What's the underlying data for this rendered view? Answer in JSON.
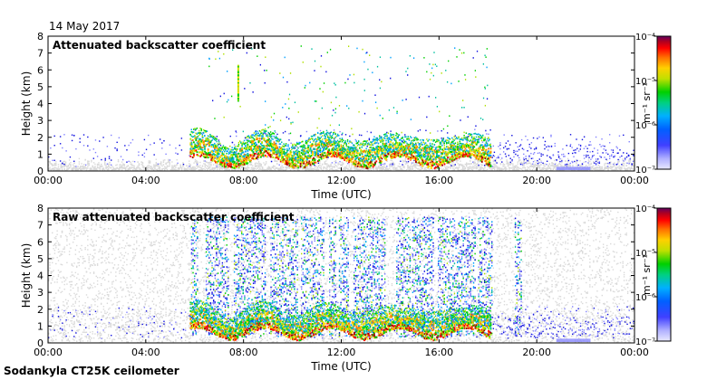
{
  "date_label": "14 May 2017",
  "footer_label": "Sodankyla CT25K ceilometer",
  "colors": {
    "background_noise": "#d9d9d9",
    "colormap": [
      "#e8e8ff",
      "#8080ff",
      "#1010e0",
      "#00a0ff",
      "#00c0a0",
      "#00d000",
      "#b0e000",
      "#ffe000",
      "#ff8000",
      "#ff0000",
      "#a00000",
      "#600060"
    ]
  },
  "chart_data": [
    {
      "type": "heatmap",
      "title": "Attenuated backscatter coefficient",
      "xlabel": "Time (UTC)",
      "ylabel": "Height (km)",
      "xticks": [
        "00:00",
        "04:00",
        "08:00",
        "12:00",
        "16:00",
        "20:00",
        "00:00"
      ],
      "xlim_hours": [
        0,
        24
      ],
      "yticks": [
        "0",
        "1",
        "2",
        "3",
        "4",
        "5",
        "6",
        "7",
        "8"
      ],
      "ylim_km": [
        0,
        8
      ],
      "colorbar": {
        "label": "m⁻¹ sr⁻¹",
        "ticks": [
          "10⁻⁷",
          "10⁻⁶",
          "10⁻⁵",
          "10⁻⁴"
        ],
        "range": [
          1e-07,
          0.0001
        ],
        "scale": "log"
      }
    },
    {
      "type": "heatmap",
      "title": "Raw attenuated backscatter coefficient",
      "xlabel": "Time (UTC)",
      "ylabel": "Height (km)",
      "xticks": [
        "00:00",
        "04:00",
        "08:00",
        "12:00",
        "16:00",
        "20:00",
        "00:00"
      ],
      "xlim_hours": [
        0,
        24
      ],
      "yticks": [
        "0",
        "1",
        "2",
        "3",
        "4",
        "5",
        "6",
        "7",
        "8"
      ],
      "ylim_km": [
        0,
        8
      ],
      "colorbar": {
        "label": "m⁻¹ sr⁻¹",
        "ticks": [
          "10⁻⁷",
          "10⁻⁶",
          "10⁻⁵",
          "10⁻⁴"
        ],
        "range": [
          1e-07,
          0.0001
        ],
        "scale": "log"
      }
    }
  ]
}
